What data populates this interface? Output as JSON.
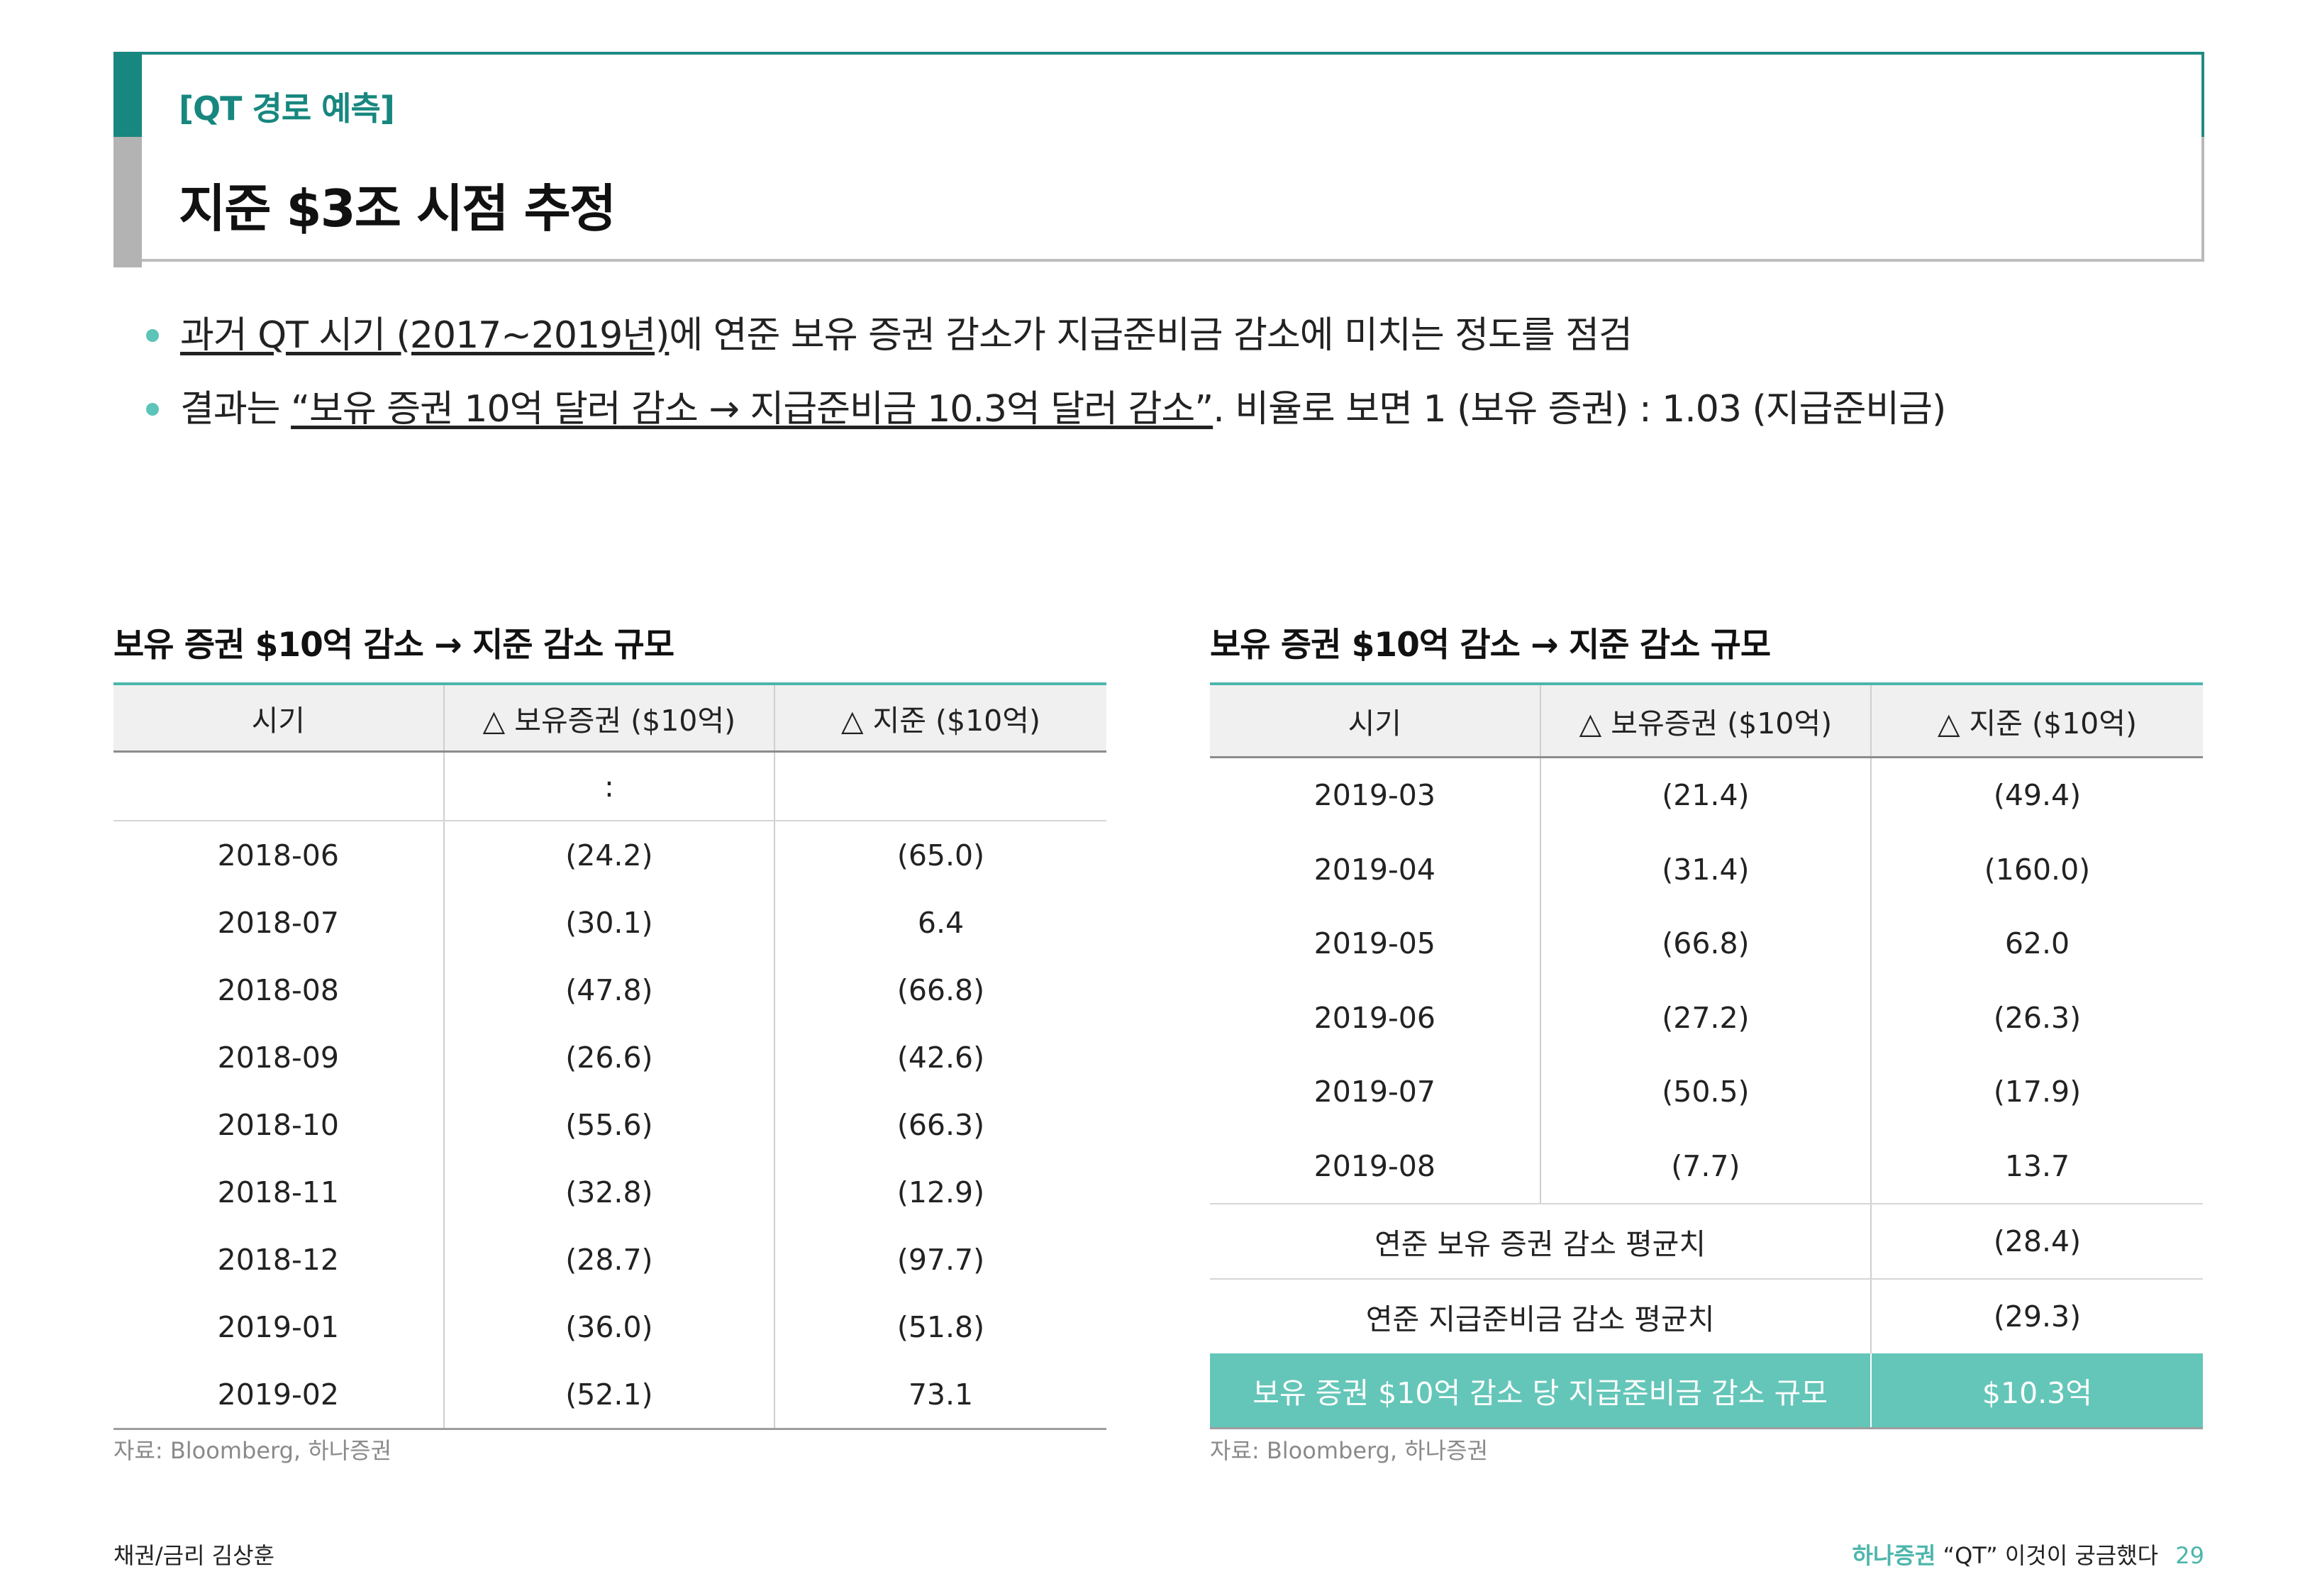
{
  "header": {
    "subtitle": "[QT 경로 예측]",
    "title": "지준 $3조 시점 추정"
  },
  "bullets": [
    {
      "underlined": "과거 QT 시기 (2017~2019년)",
      "rest": "에 연준 보유 증권 감소가 지급준비금 감소에 미치는 정도를 점검"
    },
    {
      "prefix": "결과는 ",
      "underlined": "“보유 증권 10억 달러 감소 → 지급준비금 10.3억 달러 감소”",
      "rest": ". 비율로 보면 1 (보유 증권) : 1.03 (지급준비금)"
    }
  ],
  "tableA": {
    "title": "보유 증권 $10억 감소 → 지준 감소 규모",
    "headers": [
      "시기",
      "△ 보유증권 ($10억)",
      "△ 지준 ($10억)"
    ],
    "ellipsis_row": [
      "",
      ":",
      ""
    ],
    "rows": [
      [
        "2018-06",
        "(24.2)",
        "(65.0)"
      ],
      [
        "2018-07",
        "(30.1)",
        "6.4"
      ],
      [
        "2018-08",
        "(47.8)",
        "(66.8)"
      ],
      [
        "2018-09",
        "(26.6)",
        "(42.6)"
      ],
      [
        "2018-10",
        "(55.6)",
        "(66.3)"
      ],
      [
        "2018-11",
        "(32.8)",
        "(12.9)"
      ],
      [
        "2018-12",
        "(28.7)",
        "(97.7)"
      ],
      [
        "2019-01",
        "(36.0)",
        "(51.8)"
      ],
      [
        "2019-02",
        "(52.1)",
        "73.1"
      ]
    ],
    "source": "자료: Bloomberg, 하나증권"
  },
  "tableB": {
    "title": "보유 증권 $10억 감소 → 지준 감소 규모",
    "headers": [
      "시기",
      "△ 보유증권 ($10억)",
      "△ 지준 ($10억)"
    ],
    "rows": [
      [
        "2019-03",
        "(21.4)",
        "(49.4)"
      ],
      [
        "2019-04",
        "(31.4)",
        "(160.0)"
      ],
      [
        "2019-05",
        "(66.8)",
        "62.0"
      ],
      [
        "2019-06",
        "(27.2)",
        "(26.3)"
      ],
      [
        "2019-07",
        "(50.5)",
        "(17.9)"
      ],
      [
        "2019-08",
        "(7.7)",
        "13.7"
      ]
    ],
    "summary": [
      {
        "label": "연준 보유 증권 감소 평균치",
        "value": "(28.4)"
      },
      {
        "label": "연준 지급준비금 감소 평균치",
        "value": "(29.3)"
      }
    ],
    "highlight": {
      "label": "보유 증권 $10억 감소 당 지급준비금 감소 규모",
      "value": "$10.3억"
    },
    "source": "자료: Bloomberg, 하나증권"
  },
  "footer": {
    "left": "채권/금리 김상훈",
    "brand": "하나증권",
    "title": "“QT” 이것이 궁금했다",
    "page": "29"
  },
  "colors": {
    "accent_teal": "#17877f",
    "highlight_teal": "#64c6b8",
    "bullet_dot": "#5cc4b8"
  }
}
